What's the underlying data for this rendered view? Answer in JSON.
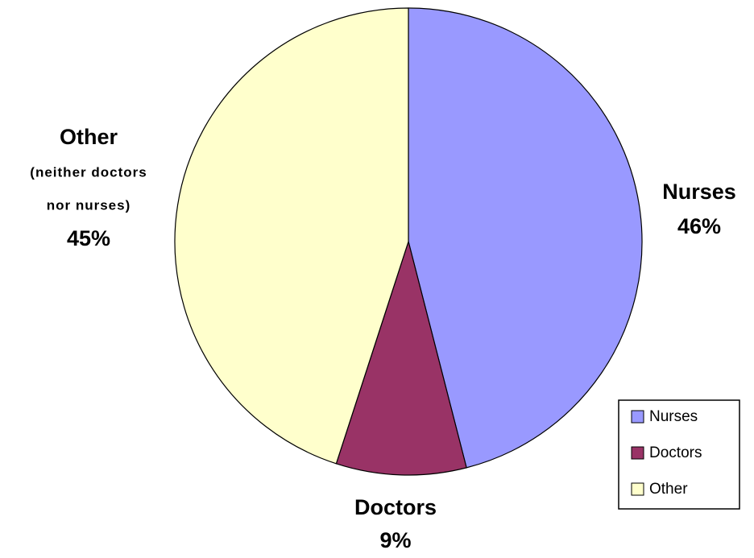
{
  "chart_data": {
    "type": "pie",
    "categories": [
      "Nurses",
      "Doctors",
      "Other"
    ],
    "values": [
      46,
      9,
      45
    ],
    "value_labels": [
      "46%",
      "9%",
      "45%"
    ],
    "colors": [
      "#9999ff",
      "#993366",
      "#ffffcc"
    ],
    "annotations": [
      "(neither doctors",
      "nor nurses)"
    ],
    "legend": "lower right"
  }
}
